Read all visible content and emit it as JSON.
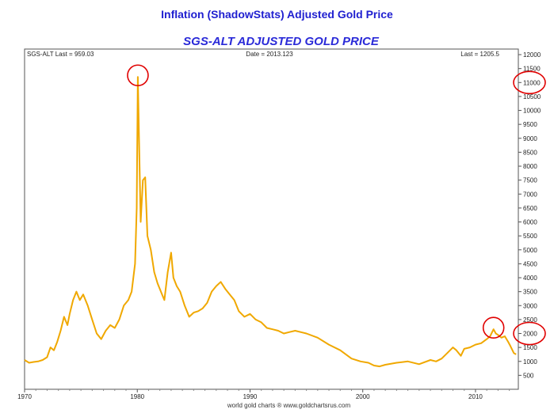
{
  "page_title": "Inflation (ShadowStats) Adjusted Gold Price",
  "colors": {
    "series": "#f0a800",
    "highlight": "#e00000",
    "title": "#1f1fd0"
  },
  "credit": "world gold charts ® www.goldchartsrus.com",
  "chart_data": {
    "type": "line",
    "title": "SGS-ALT ADJUSTED  GOLD PRICE",
    "header": {
      "left": "SGS-ALT Last = 959.03",
      "center": "Date = 2013.123",
      "right": "Last = 1205.5"
    },
    "xlabel": "",
    "ylabel": "",
    "xlim": [
      1970,
      2013.8
    ],
    "ylim": [
      0,
      12200
    ],
    "x_ticks": [
      1970,
      1980,
      1990,
      2000,
      2010
    ],
    "x_tick_labels": [
      "1970",
      "1980",
      "1990",
      "2000",
      "2010"
    ],
    "y_ticks": [
      500,
      1000,
      1500,
      2000,
      2500,
      3000,
      3500,
      4000,
      4500,
      5000,
      5500,
      6000,
      6500,
      7000,
      7500,
      8000,
      8500,
      9000,
      9500,
      10000,
      10500,
      11000,
      11500,
      12000
    ],
    "y_tick_labels": [
      "500",
      "1000",
      "1500",
      "2000",
      "2500",
      "3000",
      "3500",
      "4000",
      "4500",
      "5000",
      "5500",
      "6000",
      "6500",
      "7000",
      "7500",
      "8000",
      "8500",
      "9000",
      "9500",
      "10000",
      "10500",
      "11000",
      "11500",
      "12000"
    ],
    "grid": false,
    "series": [
      {
        "color": "#f0a800",
        "x": [
          1970.0,
          1970.4,
          1970.8,
          1971.2,
          1971.6,
          1972.0,
          1972.3,
          1972.6,
          1972.9,
          1973.2,
          1973.5,
          1973.8,
          1974.0,
          1974.3,
          1974.6,
          1974.9,
          1975.2,
          1975.6,
          1976.0,
          1976.4,
          1976.8,
          1977.2,
          1977.6,
          1978.0,
          1978.4,
          1978.8,
          1979.2,
          1979.5,
          1979.8,
          1979.95,
          1980.05,
          1980.15,
          1980.3,
          1980.5,
          1980.7,
          1980.9,
          1981.2,
          1981.5,
          1981.8,
          1982.2,
          1982.4,
          1982.7,
          1983.0,
          1983.2,
          1983.5,
          1983.8,
          1984.2,
          1984.6,
          1985.0,
          1985.4,
          1985.8,
          1986.2,
          1986.6,
          1987.0,
          1987.4,
          1987.8,
          1988.2,
          1988.6,
          1989.0,
          1989.5,
          1990.0,
          1990.5,
          1991.0,
          1991.5,
          1992.0,
          1992.5,
          1993.0,
          1993.5,
          1994.0,
          1995.0,
          1996.0,
          1997.0,
          1998.0,
          1999.0,
          1999.8,
          2000.5,
          2001.0,
          2001.5,
          2002.0,
          2003.0,
          2004.0,
          2005.0,
          2006.0,
          2006.5,
          2007.0,
          2007.5,
          2008.0,
          2008.3,
          2008.7,
          2009.0,
          2009.5,
          2010.0,
          2010.5,
          2011.0,
          2011.3,
          2011.6,
          2011.8,
          2012.0,
          2012.3,
          2012.6,
          2012.9,
          2013.1,
          2013.4,
          2013.6
        ],
        "y": [
          1050,
          950,
          980,
          1000,
          1050,
          1150,
          1500,
          1400,
          1700,
          2100,
          2600,
          2300,
          2700,
          3200,
          3500,
          3200,
          3400,
          3000,
          2500,
          2000,
          1800,
          2100,
          2300,
          2200,
          2500,
          3000,
          3200,
          3500,
          4500,
          6500,
          11200,
          9000,
          6000,
          7500,
          7600,
          5500,
          5000,
          4200,
          3800,
          3400,
          3200,
          4200,
          4900,
          4000,
          3700,
          3500,
          3000,
          2600,
          2750,
          2800,
          2900,
          3100,
          3500,
          3700,
          3850,
          3600,
          3400,
          3200,
          2800,
          2600,
          2700,
          2500,
          2400,
          2200,
          2150,
          2100,
          2000,
          2050,
          2100,
          2000,
          1850,
          1600,
          1400,
          1100,
          1000,
          950,
          850,
          820,
          880,
          950,
          1000,
          900,
          1050,
          1000,
          1100,
          1300,
          1500,
          1400,
          1200,
          1450,
          1500,
          1600,
          1650,
          1800,
          1900,
          2150,
          2000,
          1950,
          1850,
          1900,
          1700,
          1550,
          1300,
          1250
        ]
      }
    ],
    "annotations": [
      {
        "type": "circle",
        "x": 1980.05,
        "y": 11200
      },
      {
        "type": "circle",
        "x": 2011.6,
        "y": 2150
      },
      {
        "type": "circle-on-axis",
        "y": 11000
      },
      {
        "type": "circle-on-axis",
        "y": 2000
      }
    ]
  }
}
